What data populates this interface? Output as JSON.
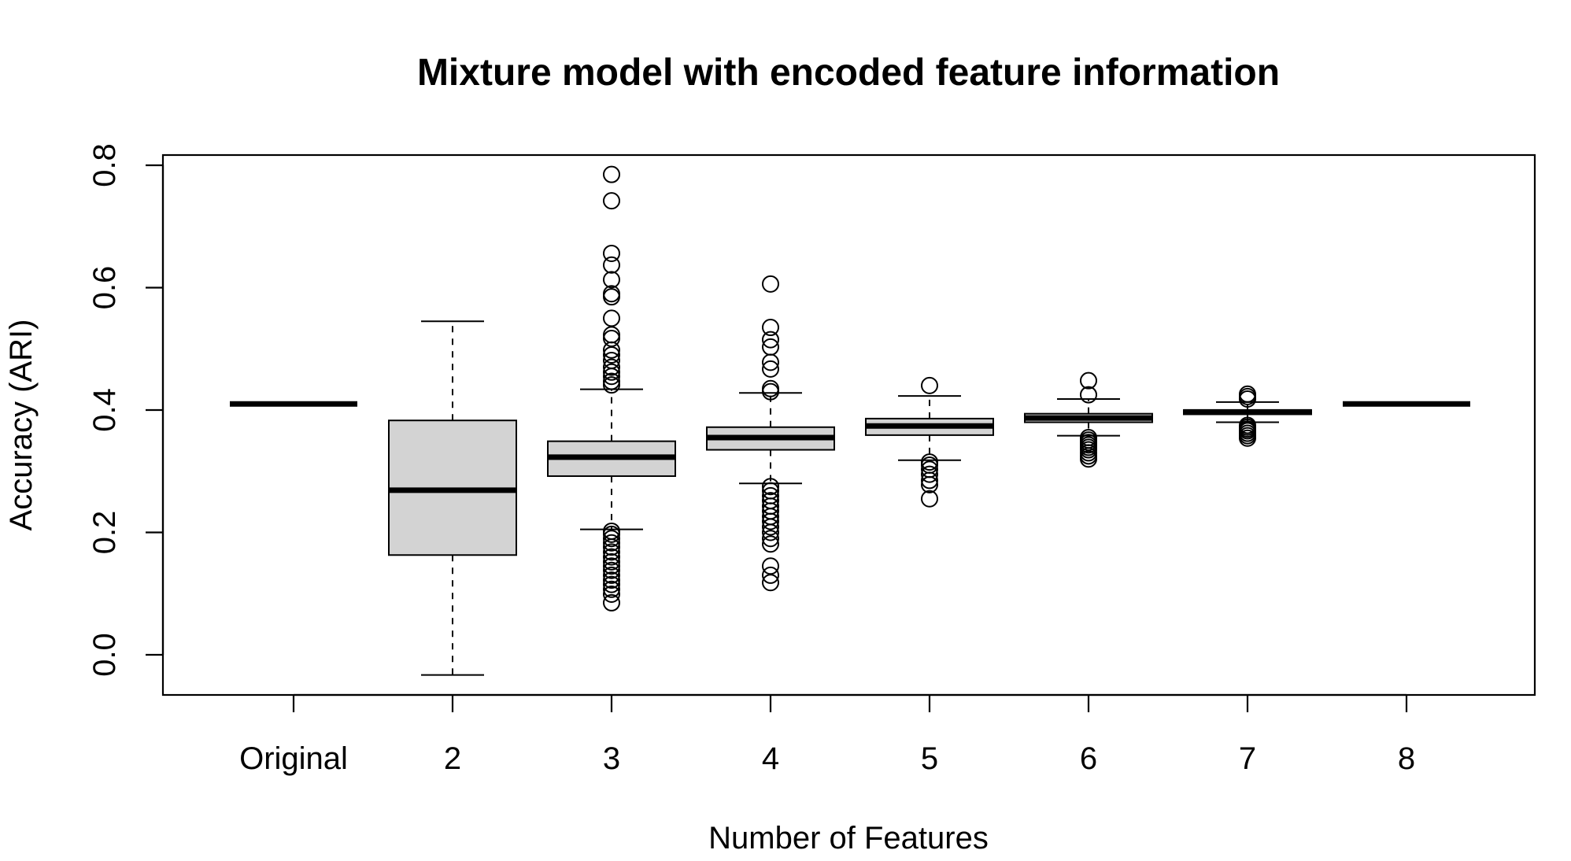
{
  "chart_data": {
    "type": "boxplot",
    "title": "Mixture model with encoded feature information",
    "xlabel": "Number of Features",
    "ylabel": "Accuracy (ARI)",
    "ylim": [
      -0.065,
      0.815
    ],
    "yticks": [
      0.0,
      0.2,
      0.4,
      0.6,
      0.8
    ],
    "ytick_labels": [
      "0.0",
      "0.2",
      "0.4",
      "0.6",
      "0.8"
    ],
    "categories": [
      "Original",
      "2",
      "3",
      "4",
      "5",
      "6",
      "7",
      "8"
    ],
    "grid": false,
    "legend": "none",
    "box_fill": "#d3d3d3",
    "boxes": [
      {
        "category": "Original",
        "whisker_low": 0.41,
        "q1": 0.41,
        "median": 0.41,
        "q3": 0.41,
        "whisker_high": 0.41,
        "outliers": []
      },
      {
        "category": "2",
        "whisker_low": -0.033,
        "q1": 0.163,
        "median": 0.269,
        "q3": 0.383,
        "whisker_high": 0.545,
        "outliers": []
      },
      {
        "category": "3",
        "whisker_low": 0.205,
        "q1": 0.292,
        "median": 0.323,
        "q3": 0.349,
        "whisker_high": 0.434,
        "outliers": [
          0.785,
          0.742,
          0.656,
          0.637,
          0.613,
          0.59,
          0.585,
          0.55,
          0.523,
          0.517,
          0.498,
          0.49,
          0.481,
          0.47,
          0.462,
          0.455,
          0.447,
          0.441,
          0.202,
          0.197,
          0.19,
          0.183,
          0.176,
          0.168,
          0.16,
          0.152,
          0.145,
          0.138,
          0.13,
          0.122,
          0.115,
          0.107,
          0.099,
          0.085
        ]
      },
      {
        "category": "4",
        "whisker_low": 0.28,
        "q1": 0.335,
        "median": 0.355,
        "q3": 0.372,
        "whisker_high": 0.428,
        "outliers": [
          0.606,
          0.535,
          0.515,
          0.503,
          0.478,
          0.467,
          0.435,
          0.43,
          0.275,
          0.268,
          0.26,
          0.252,
          0.243,
          0.235,
          0.226,
          0.218,
          0.209,
          0.2,
          0.19,
          0.181,
          0.145,
          0.13,
          0.118
        ]
      },
      {
        "category": "5",
        "whisker_low": 0.318,
        "q1": 0.359,
        "median": 0.374,
        "q3": 0.386,
        "whisker_high": 0.423,
        "outliers": [
          0.44,
          0.315,
          0.31,
          0.303,
          0.295,
          0.285,
          0.278,
          0.255
        ]
      },
      {
        "category": "6",
        "whisker_low": 0.358,
        "q1": 0.38,
        "median": 0.387,
        "q3": 0.394,
        "whisker_high": 0.418,
        "outliers": [
          0.448,
          0.425,
          0.355,
          0.351,
          0.347,
          0.343,
          0.339,
          0.335,
          0.33,
          0.325,
          0.32
        ]
      },
      {
        "category": "7",
        "whisker_low": 0.38,
        "q1": 0.393,
        "median": 0.397,
        "q3": 0.4,
        "whisker_high": 0.413,
        "outliers": [
          0.426,
          0.422,
          0.418,
          0.375,
          0.372,
          0.369,
          0.366,
          0.362,
          0.358,
          0.354
        ]
      },
      {
        "category": "8",
        "whisker_low": 0.41,
        "q1": 0.41,
        "median": 0.41,
        "q3": 0.41,
        "whisker_high": 0.41,
        "outliers": []
      }
    ]
  }
}
